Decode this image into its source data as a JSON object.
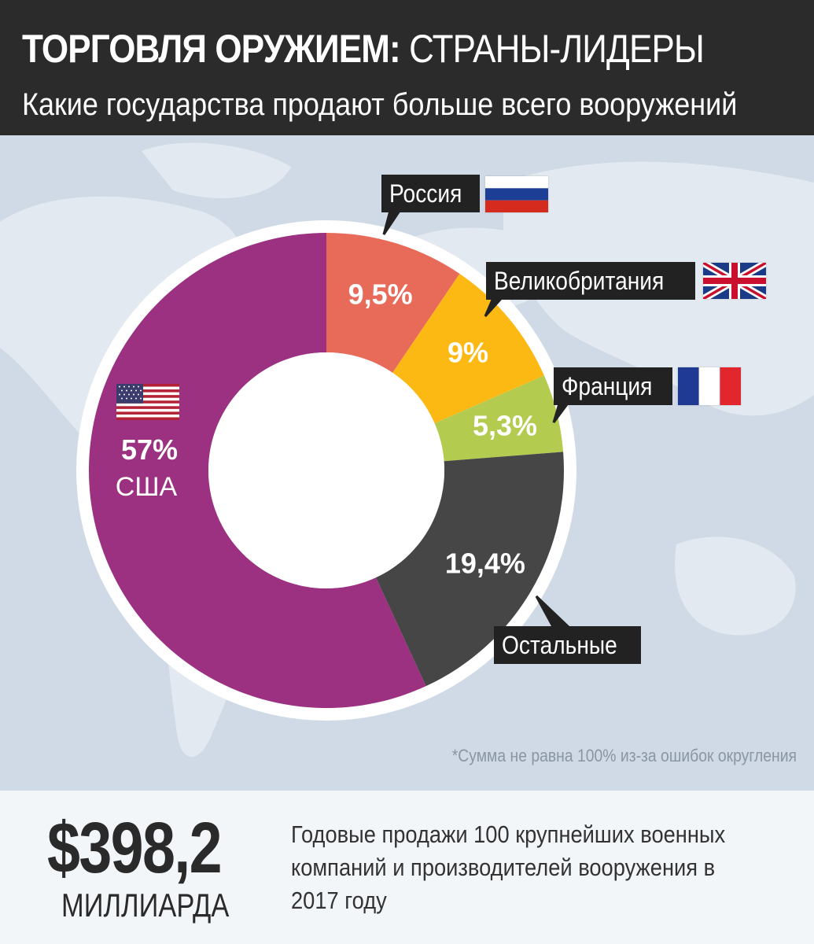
{
  "header": {
    "title_bold": "ТОРГОВЛЯ ОРУЖИЕМ:",
    "title_light": "СТРАНЫ-ЛИДЕРЫ",
    "subtitle": "Какие государства продают больше всего вооружений"
  },
  "chart_data": {
    "type": "pie",
    "series": [
      {
        "name": "США",
        "value": 57,
        "label": "57%",
        "color": "#9b3180"
      },
      {
        "name": "Россия",
        "value": 9.5,
        "label": "9,5%",
        "color": "#e86b5a"
      },
      {
        "name": "Великобритания",
        "value": 9,
        "label": "9%",
        "color": "#fdb913"
      },
      {
        "name": "Франция",
        "value": 5.3,
        "label": "5,3%",
        "color": "#b3cb4f"
      },
      {
        "name": "Остальные",
        "value": 19.4,
        "label": "19,4%",
        "color": "#464646"
      }
    ]
  },
  "labels": {
    "usa": "США",
    "russia": "Россия",
    "uk": "Великобритания",
    "france": "Франция",
    "others": "Остальные"
  },
  "flags": {
    "usa": "usa-flag-icon",
    "russia": "russia-flag-icon",
    "uk": "uk-flag-icon",
    "france": "france-flag-icon"
  },
  "footnote": "*Сумма не равна 100% из-за ошибок округления",
  "footer": {
    "total_value": "$398,2",
    "total_unit": "МИЛЛИАРДА",
    "description": "Годовые продажи 100 крупнейших военных компаний и производителей вооружения в 2017 году"
  }
}
